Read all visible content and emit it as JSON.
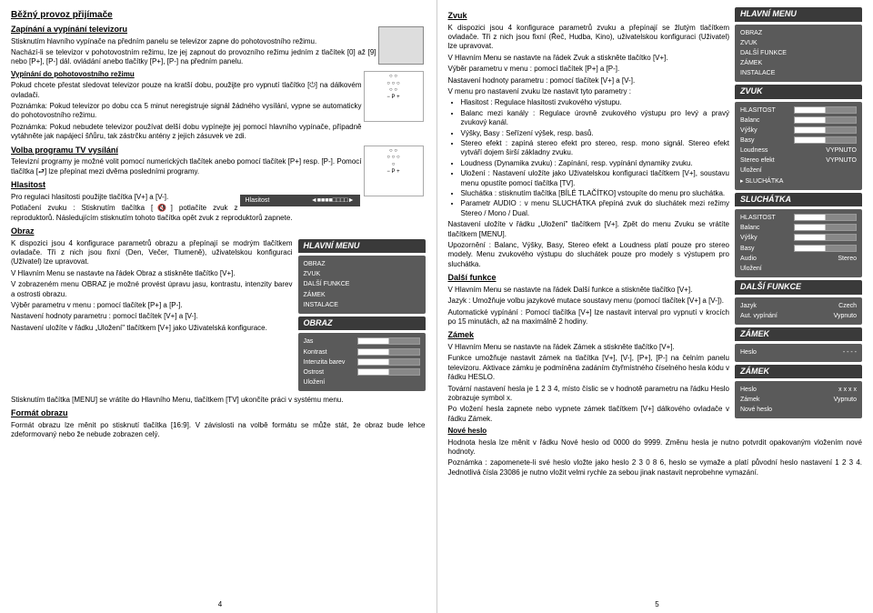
{
  "left": {
    "h1": "Běžný provoz přijímače",
    "s1": {
      "h": "Zapínání a vypínání televizoru",
      "p1": "Stisknutím hlavního vypínače na předním panelu se televizor zapne do pohotovostního režimu.",
      "p2": "Nachází-li se televizor v pohotovostním režimu, lze jej zapnout do provozního režimu jedním z tlačítek [0] až [9] nebo [P+], [P-] dál. ovládání anebo tlačítky [P+], [P-] na předním panelu."
    },
    "s2": {
      "h": "Vypínání do pohotovostního režimu",
      "p1": "Pokud chcete přestat sledovat televizor pouze na kratší dobu, použijte pro vypnutí tlačítko [⏻] na dálkovém ovladači.",
      "p2": "Poznámka: Pokud televizor po dobu cca 5 minut neregistruje signál žádného vysílání, vypne se automaticky do pohotovostního režimu.",
      "p3": "Poznámka: Pokud nebudete televizor používat delší dobu vypínejte jej pomocí hlavního vypínače, případně vytáhněte jak napájecí šňůru, tak zástrčku antény z jejich zásuvek ve zdi."
    },
    "s3": {
      "h": "Volba programu TV vysílání",
      "p1": "Televizní programy je možné volit pomocí numerických tlačítek anebo pomocí tlačítek [P+] resp. [P-]. Pomocí tlačítka [⮐] lze přepínat mezi dvěma posledními programy."
    },
    "s4": {
      "h": "Hlasitost",
      "p1": "Pro regulaci hlasitosti použijte tlačítka [V+] a [V-].",
      "p2": "Potlačení zvuku : Stisknutím tlačítka [🔇] potlačíte zvuk z reproduktorů. Následujícím stisknutím tohoto tlačítka opět zvuk z reproduktorů zapnete."
    },
    "s5": {
      "h": "Obraz",
      "p1": "K dispozici jsou 4 konfigurace parametrů obrazu a přepínají se modrým tlačítkem ovladače. Tři z nich jsou fixní (Den, Večer, Tlumeně), uživatelskou konfiguraci (Uživatel) lze upravovat.",
      "p2": "V Hlavním Menu se nastavte na řádek Obraz a stiskněte tlačítko [V+].",
      "p3": "V zobrazeném menu OBRAZ je možné provést úpravu jasu, kontrastu, intenzity barev a ostrosti obrazu.",
      "p4": "Výběr parametru v menu : pomocí tlačítek [P+] a [P-].",
      "p5": "Nastavení hodnoty parametru : pomocí tlačítek [V+] a [V-].",
      "p6": "Nastavení uložíte v řádku „Uložení\" tlačítkem [V+] jako Uživatelská konfigurace.",
      "p7": "Stisknutím tlačítka [MENU] se vrátíte do Hlavního Menu, tlačítkem [TV] ukončíte práci v systému menu."
    },
    "s6": {
      "h": "Formát obrazu",
      "p1": "Formát obrazu lze měnit po stisknutí tlačítka [16:9]. V závislosti na volbě formátu se může stát, že obraz bude lehce zdeformovaný nebo že nebude zobrazen celý."
    },
    "menu1": {
      "title": "HLAVNÍ MENU",
      "items": [
        "OBRAZ",
        "ZVUK",
        "DALŠÍ FUNKCE",
        "ZÁMEK",
        "INSTALACE"
      ]
    },
    "menu2": {
      "title": "OBRAZ",
      "items": [
        {
          "k": "Jas",
          "v": "slider"
        },
        {
          "k": "Kontrast",
          "v": "slider"
        },
        {
          "k": "Intenzita barev",
          "v": "slider"
        },
        {
          "k": "Ostrost",
          "v": "slider"
        },
        {
          "k": "Uložení",
          "v": ""
        }
      ]
    },
    "hlasitost": "Hlasitost",
    "pgnum": "4"
  },
  "right": {
    "s1": {
      "h": "Zvuk",
      "p1": "K dispozici jsou 4 konfigurace parametrů zvuku a přepínají se žlutým tlačítkem ovladače. Tři z nich jsou fixní (Řeč, Hudba, Kino), uživatelskou konfiguraci (Uživatel) lze upravovat.",
      "p2": "V Hlavním Menu se nastavte na řádek Zvuk a stiskněte tlačítko [V+].",
      "p3": "Výběr parametru v menu : pomocí tlačítek [P+] a [P-].",
      "p4": "Nastavení hodnoty parametru : pomocí tlačítek [V+] a [V-].",
      "p5": "V menu pro nastavení zvuku lze nastavit tyto parametry :"
    },
    "bullets": [
      "Hlasitost : Regulace hlasitosti zvukového výstupu.",
      "Balanc mezi kanály : Regulace úrovně zvukového výstupu pro levý a pravý zvukový kanál.",
      "Výšky, Basy : Seřízení výšek, resp. basů.",
      "Stereo efekt : zapíná stereo efekt pro stereo, resp. mono signál. Stereo efekt vytváří dojem širší základny zvuku.",
      "Loudness (Dynamika zvuku) : Zapínání, resp. vypínání dynamiky zvuku.",
      "Uložení : Nastavení uložíte jako Uživatelskou konfiguraci tlačítkem [V+], soustavu menu opustíte pomocí tlačítka [TV].",
      "Sluchátka : stisknutím tlačítka [BÍLÉ TLAČÍTKO] vstoupíte do menu pro sluchátka.",
      "Parametr AUDIO : v menu SLUCHÁTKA přepíná zvuk do sluchátek mezi režimy Stereo / Mono / Dual."
    ],
    "p6": "Nastavení uložíte v řádku „Uložení\" tlačítkem [V+]. Zpět do menu Zvuku se vrátíte tlačítkem [MENU].",
    "p7": "Upozornění : Balanc, Výšky, Basy, Stereo efekt a Loudness platí pouze pro stereo modely. Menu zvukového výstupu do sluchátek pouze pro modely s výstupem pro sluchátka.",
    "s2": {
      "h": "Další funkce",
      "p1": "V Hlavním Menu se nastavte na řádek Další funkce a stiskněte tlačítko [V+].",
      "p2": "Jazyk : Umožňuje volbu jazykové mutace soustavy menu (pomocí tlačítek [V+] a [V-]).",
      "p3": "Automatické vypínání : Pomocí tlačítka [V+] lze nastavit interval pro vypnutí v krocích po 15 minutách, až na maximálně 2 hodiny."
    },
    "s3": {
      "h": "Zámek",
      "p1": "V Hlavním Menu se nastavte na řádek Zámek a stiskněte tlačítko [V+].",
      "p2": "Funkce umožňuje nastavit zámek na tlačítka [V+], [V-], [P+], [P-] na čelním panelu televizoru. Aktivace zámku je podmíněna zadáním čtyřmístného číselného hesla kódu v řádku HESLO.",
      "p3": "Tovární nastavení hesla je 1 2 3 4, místo číslic se v hodnotě parametru na řádku Heslo zobrazuje symbol x.",
      "p4": "Po vložení hesla zapnete nebo vypnete zámek tlačítkem [V+] dálkového ovladače v řádku Zámek."
    },
    "s4": {
      "h": "Nové heslo",
      "p1": "Hodnota hesla lze měnit v řádku Nové heslo od 0000 do 9999. Změnu hesla je nutno potvrdit opakovaným vložením nové hodnoty.",
      "p2": "Poznámka : zapomenete-li své heslo vložte jako heslo 2 3 0 8 6, heslo se vymaže a platí původní heslo nastavení 1 2 3 4. Jednotlivá čísla 23086 je nutno vložit velmi rychle za sebou jinak nastavit neprobehne vymazání."
    },
    "menu1": {
      "title": "HLAVNÍ MENU",
      "items": [
        "OBRAZ",
        "ZVUK",
        "DALŠÍ FUNKCE",
        "ZÁMEK",
        "INSTALACE"
      ]
    },
    "menu2": {
      "title": "ZVUK",
      "items": [
        {
          "k": "HLASITOST",
          "v": "slider"
        },
        {
          "k": "Balanc",
          "v": "slider"
        },
        {
          "k": "Výšky",
          "v": "slider"
        },
        {
          "k": "Basy",
          "v": "slider"
        },
        {
          "k": "Loudness",
          "v": "VYPNUTO"
        },
        {
          "k": "Stereo efekt",
          "v": "VYPNUTO"
        },
        {
          "k": "Uložení",
          "v": ""
        },
        {
          "k": "▸ SLUCHÁTKA",
          "v": ""
        }
      ]
    },
    "menu3": {
      "title": "SLUCHÁTKA",
      "items": [
        {
          "k": "HLASITOST",
          "v": "slider"
        },
        {
          "k": "Balanc",
          "v": "slider"
        },
        {
          "k": "Výšky",
          "v": "slider"
        },
        {
          "k": "Basy",
          "v": "slider"
        },
        {
          "k": "Audio",
          "v": "Stereo"
        },
        {
          "k": "Uložení",
          "v": ""
        }
      ]
    },
    "menu4": {
      "title": "DALŠÍ FUNKCE",
      "items": [
        {
          "k": "Jazyk",
          "v": "Czech"
        },
        {
          "k": "Aut. vypínání",
          "v": "Vypnuto"
        }
      ]
    },
    "menu5": {
      "title": "ZÁMEK",
      "items": [
        {
          "k": "Heslo",
          "v": "- - - -"
        }
      ]
    },
    "menu6": {
      "title": "ZÁMEK",
      "items": [
        {
          "k": "Heslo",
          "v": "x x x x"
        },
        {
          "k": "Zámek",
          "v": "Vypnuto"
        },
        {
          "k": "Nové heslo",
          "v": ""
        }
      ]
    },
    "pgnum": "5"
  }
}
